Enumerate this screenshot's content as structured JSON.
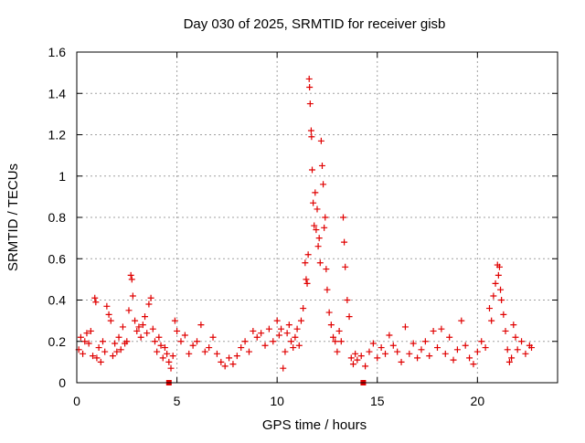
{
  "chart_data": {
    "type": "scatter",
    "title": "Day 030 of 2025, SRMTID for receiver gisb",
    "xlabel": "GPS time / hours",
    "ylabel": "SRMTID / TECUs",
    "xlim": [
      0,
      24
    ],
    "ylim": [
      0,
      1.6
    ],
    "xticks": [
      0,
      5,
      10,
      15,
      20
    ],
    "xtick_labels": [
      "0",
      "5",
      "10",
      "15",
      "20"
    ],
    "yticks": [
      0,
      0.2,
      0.4,
      0.6,
      0.8,
      1.0,
      1.2,
      1.4,
      1.6
    ],
    "ytick_labels": [
      "0",
      "0.2",
      "0.4",
      "0.6",
      "0.8",
      "1",
      "1.2",
      "1.4",
      "1.6"
    ],
    "grid": true,
    "marker": "+",
    "colors": {
      "series": "#e00000",
      "grid": "#a0a0a0",
      "axes": "#000000",
      "text": "#000000"
    },
    "series": [
      {
        "name": "SRMTID",
        "points": [
          [
            0.1,
            0.16
          ],
          [
            0.2,
            0.22
          ],
          [
            0.3,
            0.14
          ],
          [
            0.4,
            0.2
          ],
          [
            0.5,
            0.24
          ],
          [
            0.6,
            0.19
          ],
          [
            0.7,
            0.25
          ],
          [
            0.8,
            0.13
          ],
          [
            0.9,
            0.41
          ],
          [
            0.95,
            0.39
          ],
          [
            1.0,
            0.12
          ],
          [
            1.1,
            0.17
          ],
          [
            1.2,
            0.1
          ],
          [
            1.3,
            0.2
          ],
          [
            1.4,
            0.15
          ],
          [
            1.5,
            0.37
          ],
          [
            1.6,
            0.33
          ],
          [
            1.7,
            0.3
          ],
          [
            1.8,
            0.13
          ],
          [
            1.9,
            0.19
          ],
          [
            2.0,
            0.15
          ],
          [
            2.1,
            0.22
          ],
          [
            2.2,
            0.16
          ],
          [
            2.3,
            0.27
          ],
          [
            2.4,
            0.19
          ],
          [
            2.5,
            0.2
          ],
          [
            2.6,
            0.35
          ],
          [
            2.7,
            0.52
          ],
          [
            2.75,
            0.5
          ],
          [
            2.8,
            0.42
          ],
          [
            2.9,
            0.3
          ],
          [
            3.0,
            0.25
          ],
          [
            3.1,
            0.27
          ],
          [
            3.2,
            0.22
          ],
          [
            3.3,
            0.28
          ],
          [
            3.4,
            0.32
          ],
          [
            3.5,
            0.24
          ],
          [
            3.6,
            0.38
          ],
          [
            3.7,
            0.41
          ],
          [
            3.8,
            0.26
          ],
          [
            3.9,
            0.2
          ],
          [
            4.0,
            0.15
          ],
          [
            4.1,
            0.22
          ],
          [
            4.2,
            0.18
          ],
          [
            4.3,
            0.12
          ],
          [
            4.4,
            0.17
          ],
          [
            4.5,
            0.14
          ],
          [
            4.6,
            0.1
          ],
          [
            4.7,
            0.07
          ],
          [
            4.8,
            0.13
          ],
          [
            4.9,
            0.3
          ],
          [
            5.0,
            0.25
          ],
          [
            5.2,
            0.2
          ],
          [
            5.4,
            0.23
          ],
          [
            5.6,
            0.14
          ],
          [
            5.8,
            0.18
          ],
          [
            6.0,
            0.2
          ],
          [
            6.2,
            0.28
          ],
          [
            6.4,
            0.15
          ],
          [
            6.6,
            0.17
          ],
          [
            6.8,
            0.22
          ],
          [
            7.0,
            0.14
          ],
          [
            7.2,
            0.1
          ],
          [
            7.4,
            0.08
          ],
          [
            7.6,
            0.12
          ],
          [
            7.8,
            0.09
          ],
          [
            8.0,
            0.13
          ],
          [
            8.2,
            0.17
          ],
          [
            8.4,
            0.2
          ],
          [
            8.6,
            0.15
          ],
          [
            8.8,
            0.25
          ],
          [
            9.0,
            0.22
          ],
          [
            9.2,
            0.24
          ],
          [
            9.4,
            0.18
          ],
          [
            9.6,
            0.26
          ],
          [
            9.8,
            0.2
          ],
          [
            10.0,
            0.3
          ],
          [
            10.1,
            0.23
          ],
          [
            10.2,
            0.26
          ],
          [
            10.3,
            0.07
          ],
          [
            10.4,
            0.15
          ],
          [
            10.5,
            0.24
          ],
          [
            10.6,
            0.28
          ],
          [
            10.7,
            0.2
          ],
          [
            10.8,
            0.17
          ],
          [
            10.9,
            0.22
          ],
          [
            11.0,
            0.26
          ],
          [
            11.1,
            0.18
          ],
          [
            11.2,
            0.3
          ],
          [
            11.3,
            0.36
          ],
          [
            11.4,
            0.58
          ],
          [
            11.45,
            0.5
          ],
          [
            11.5,
            0.48
          ],
          [
            11.55,
            0.62
          ],
          [
            11.6,
            1.47
          ],
          [
            11.62,
            1.43
          ],
          [
            11.65,
            1.35
          ],
          [
            11.7,
            1.22
          ],
          [
            11.72,
            1.19
          ],
          [
            11.75,
            1.03
          ],
          [
            11.8,
            0.87
          ],
          [
            11.85,
            0.76
          ],
          [
            11.9,
            0.92
          ],
          [
            11.95,
            0.74
          ],
          [
            12.0,
            0.84
          ],
          [
            12.05,
            0.66
          ],
          [
            12.1,
            0.7
          ],
          [
            12.15,
            0.58
          ],
          [
            12.2,
            1.17
          ],
          [
            12.25,
            1.05
          ],
          [
            12.3,
            0.96
          ],
          [
            12.35,
            0.75
          ],
          [
            12.4,
            0.8
          ],
          [
            12.45,
            0.55
          ],
          [
            12.5,
            0.45
          ],
          [
            12.6,
            0.34
          ],
          [
            12.7,
            0.28
          ],
          [
            12.8,
            0.22
          ],
          [
            12.9,
            0.2
          ],
          [
            13.0,
            0.15
          ],
          [
            13.1,
            0.25
          ],
          [
            13.2,
            0.2
          ],
          [
            13.3,
            0.8
          ],
          [
            13.35,
            0.68
          ],
          [
            13.4,
            0.56
          ],
          [
            13.5,
            0.4
          ],
          [
            13.6,
            0.32
          ],
          [
            13.7,
            0.12
          ],
          [
            13.8,
            0.09
          ],
          [
            13.9,
            0.14
          ],
          [
            14.0,
            0.11
          ],
          [
            14.2,
            0.13
          ],
          [
            14.4,
            0.08
          ],
          [
            14.6,
            0.15
          ],
          [
            14.8,
            0.19
          ],
          [
            15.0,
            0.12
          ],
          [
            15.2,
            0.17
          ],
          [
            15.4,
            0.14
          ],
          [
            15.6,
            0.23
          ],
          [
            15.8,
            0.18
          ],
          [
            16.0,
            0.15
          ],
          [
            16.2,
            0.1
          ],
          [
            16.4,
            0.27
          ],
          [
            16.6,
            0.14
          ],
          [
            16.8,
            0.19
          ],
          [
            17.0,
            0.12
          ],
          [
            17.2,
            0.16
          ],
          [
            17.4,
            0.2
          ],
          [
            17.6,
            0.13
          ],
          [
            17.8,
            0.25
          ],
          [
            18.0,
            0.17
          ],
          [
            18.2,
            0.26
          ],
          [
            18.4,
            0.14
          ],
          [
            18.6,
            0.22
          ],
          [
            18.8,
            0.11
          ],
          [
            19.0,
            0.16
          ],
          [
            19.2,
            0.3
          ],
          [
            19.4,
            0.18
          ],
          [
            19.6,
            0.12
          ],
          [
            19.8,
            0.09
          ],
          [
            20.0,
            0.15
          ],
          [
            20.2,
            0.2
          ],
          [
            20.4,
            0.17
          ],
          [
            20.6,
            0.36
          ],
          [
            20.7,
            0.3
          ],
          [
            20.8,
            0.42
          ],
          [
            20.9,
            0.48
          ],
          [
            21.0,
            0.57
          ],
          [
            21.05,
            0.52
          ],
          [
            21.1,
            0.56
          ],
          [
            21.15,
            0.45
          ],
          [
            21.2,
            0.4
          ],
          [
            21.3,
            0.33
          ],
          [
            21.4,
            0.25
          ],
          [
            21.5,
            0.16
          ],
          [
            21.6,
            0.1
          ],
          [
            21.7,
            0.12
          ],
          [
            21.8,
            0.28
          ],
          [
            21.9,
            0.22
          ],
          [
            22.0,
            0.16
          ],
          [
            22.2,
            0.2
          ],
          [
            22.4,
            0.14
          ],
          [
            22.6,
            0.18
          ],
          [
            22.7,
            0.17
          ]
        ]
      }
    ],
    "marker_squares": [
      {
        "x": 4.6,
        "y": 0.0
      },
      {
        "x": 14.3,
        "y": 0.0
      }
    ]
  }
}
